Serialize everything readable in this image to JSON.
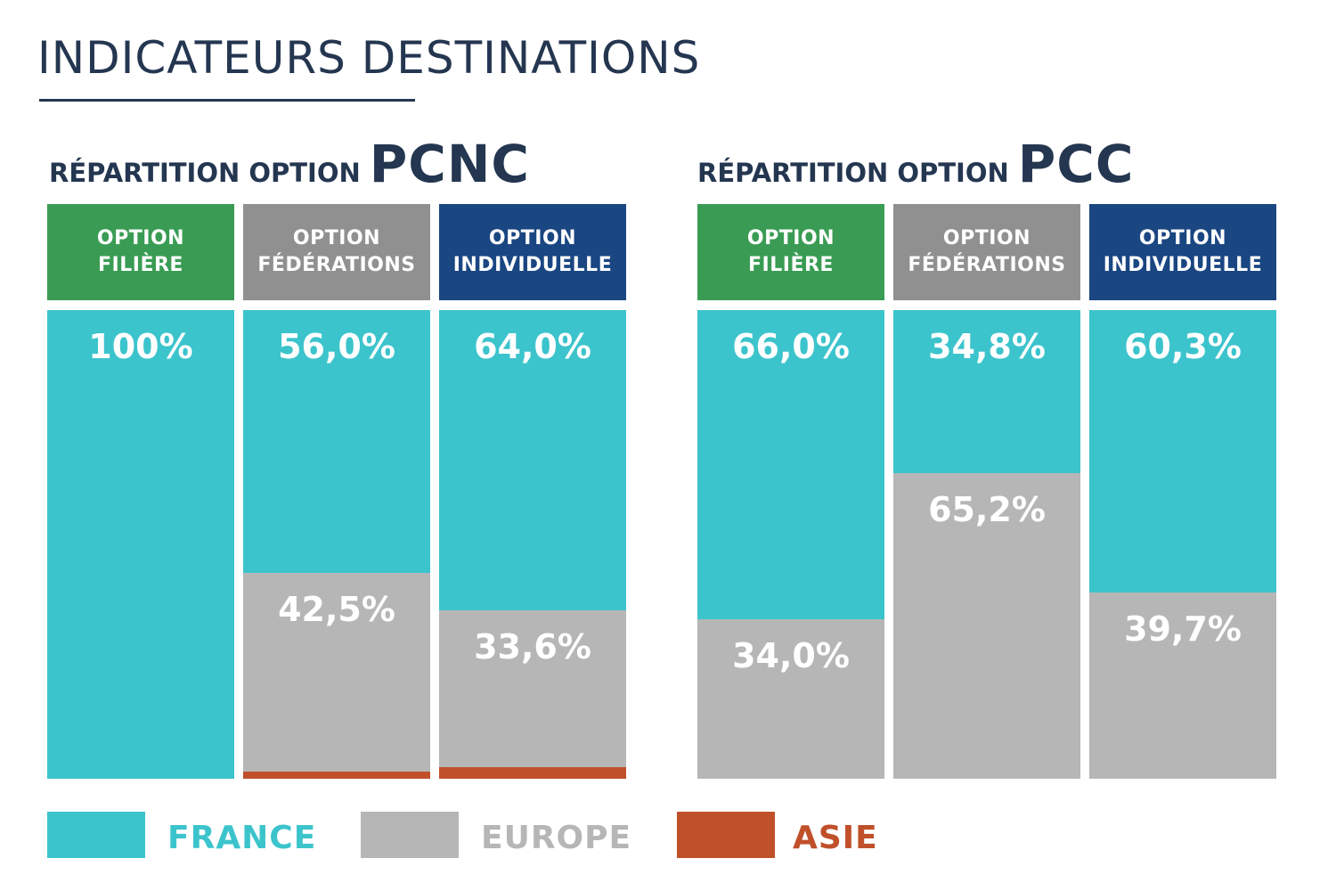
{
  "page_title": "INDICATEURS DESTINATIONS",
  "colors": {
    "title": "#243650",
    "filiere": "#3a9c54",
    "federations": "#909090",
    "individuelle": "#1a4682",
    "france": "#3cc4cc",
    "europe": "#b6b6b6",
    "asie": "#c0502a"
  },
  "legend": [
    {
      "name": "FRANCE",
      "color": "#3cc4cc"
    },
    {
      "name": "EUROPE",
      "color": "#b6b6b6"
    },
    {
      "name": "ASIE",
      "color": "#c0502a"
    }
  ],
  "chart_data": [
    {
      "type": "bar",
      "stacked": true,
      "normalized": true,
      "title_prefix": "RÉPARTITION OPTION",
      "title_option": "PCNC",
      "categories": [
        {
          "line1": "OPTION",
          "line2": "FILIÈRE"
        },
        {
          "line1": "OPTION",
          "line2": "FÉDÉRATIONS"
        },
        {
          "line1": "OPTION",
          "line2": "INDIVIDUELLE"
        }
      ],
      "series": [
        {
          "name": "FRANCE",
          "values": [
            100,
            56.0,
            64.0
          ],
          "labels": [
            "100%",
            "56,0%",
            "64,0%"
          ]
        },
        {
          "name": "EUROPE",
          "values": [
            0,
            42.5,
            33.6
          ],
          "labels": [
            "",
            "42,5%",
            "33,6%"
          ]
        },
        {
          "name": "ASIE",
          "values": [
            0,
            1.5,
            2.4
          ],
          "labels": [
            "",
            "",
            ""
          ]
        }
      ],
      "ylim": [
        0,
        100
      ]
    },
    {
      "type": "bar",
      "stacked": true,
      "normalized": true,
      "title_prefix": "RÉPARTITION OPTION",
      "title_option": "PCC",
      "categories": [
        {
          "line1": "OPTION",
          "line2": "FILIÈRE"
        },
        {
          "line1": "OPTION",
          "line2": "FÉDÉRATIONS"
        },
        {
          "line1": "OPTION",
          "line2": "INDIVIDUELLE"
        }
      ],
      "series": [
        {
          "name": "FRANCE",
          "values": [
            66.0,
            34.8,
            60.3
          ],
          "labels": [
            "66,0%",
            "34,8%",
            "60,3%"
          ]
        },
        {
          "name": "EUROPE",
          "values": [
            34.0,
            65.2,
            39.7
          ],
          "labels": [
            "34,0%",
            "65,2%",
            "39,7%"
          ]
        },
        {
          "name": "ASIE",
          "values": [
            0,
            0,
            0
          ],
          "labels": [
            "",
            "",
            ""
          ]
        }
      ],
      "ylim": [
        0,
        100
      ]
    }
  ]
}
